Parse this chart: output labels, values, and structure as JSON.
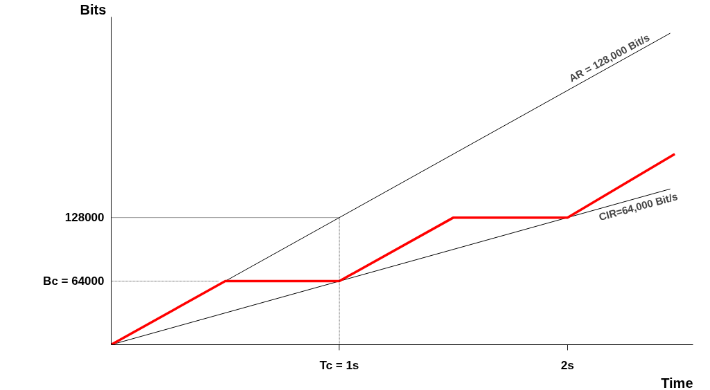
{
  "chart_data": {
    "type": "line",
    "xlabel": "Time",
    "ylabel": "Bits",
    "xlim": [
      0,
      2.55
    ],
    "ylim": [
      0,
      330000
    ],
    "xticks": [
      {
        "value": 1,
        "label": "Tc = 1s"
      },
      {
        "value": 2,
        "label": "2s"
      }
    ],
    "yticks": [
      {
        "value": 64000,
        "label": "Bc = 64000"
      },
      128000
    ],
    "grid": false,
    "marker": "none",
    "series": [
      {
        "color": "#000000",
        "x": [
          0,
          2.45
        ],
        "values": [
          0,
          313600
        ]
      },
      {
        "color": "#000000",
        "x": [
          0,
          2.45
        ],
        "values": [
          0,
          156800
        ]
      },
      {
        "color": "#ff0000",
        "x": [
          0,
          0.5,
          1,
          1.5,
          2,
          2.47
        ],
        "values": [
          0,
          64000,
          64000,
          128000,
          128000,
          192000
        ]
      },
      {
        "color": "#000000",
        "line_style": "dotted",
        "x": [
          0,
          1,
          1
        ],
        "values": [
          128000,
          128000,
          0
        ]
      },
      {
        "color": "#000000",
        "line_style": "dotted",
        "x": [
          0.47,
          0
        ],
        "values": [
          64000,
          64000
        ]
      }
    ],
    "annotations": [
      {
        "text": "AR = 128,000 Bit/s",
        "x": 2.2,
        "y": 281600
      },
      {
        "text": "CIR=64,000 Bit/s",
        "x": 2.3,
        "y": 147200
      }
    ]
  }
}
